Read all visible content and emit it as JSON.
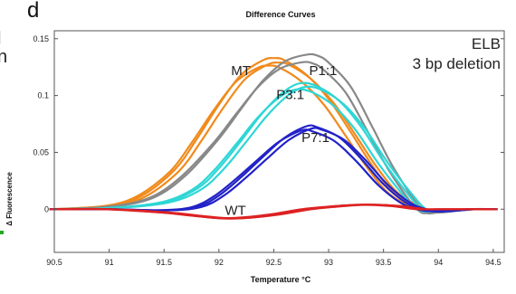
{
  "figure": {
    "panel_letter": "d",
    "left_edge_fragments": [
      "l",
      "n"
    ]
  },
  "chart_data": {
    "type": "line",
    "title": "Difference Curves",
    "xlabel": "Temperature °C",
    "ylabel": "Δ Fluorescence",
    "xlim": [
      90.5,
      94.6
    ],
    "ylim": [
      -0.038,
      0.157
    ],
    "xticks": [
      "90.5",
      "91",
      "91.5",
      "92",
      "92.5",
      "93",
      "93.5",
      "94",
      "94.5"
    ],
    "yticks": [
      "0",
      "0.05",
      "0.1",
      "0.15"
    ],
    "grid": false,
    "annotations": {
      "corner": [
        "ELB",
        "3 bp deletion"
      ],
      "labels": [
        {
          "text": "MT",
          "x": 92.2,
          "y": 0.118
        },
        {
          "text": "P1:1",
          "x": 92.95,
          "y": 0.118
        },
        {
          "text": "P3:1",
          "x": 92.65,
          "y": 0.097
        },
        {
          "text": "P7:1",
          "x": 92.88,
          "y": 0.059
        },
        {
          "text": "WT",
          "x": 92.15,
          "y": -0.005
        }
      ]
    },
    "series": [
      {
        "name": "MT",
        "color": "#f08a1c",
        "replicates": 3,
        "x": [
          90.5,
          91.0,
          91.3,
          91.6,
          91.8,
          92.0,
          92.2,
          92.4,
          92.5,
          92.6,
          92.8,
          93.0,
          93.2,
          93.4,
          93.6,
          93.85,
          94.0,
          94.3,
          94.5
        ],
        "y": [
          0,
          0.003,
          0.012,
          0.035,
          0.062,
          0.092,
          0.118,
          0.131,
          0.133,
          0.131,
          0.118,
          0.097,
          0.068,
          0.038,
          0.014,
          0,
          -0.002,
          0,
          0
        ]
      },
      {
        "name": "P1:1",
        "color": "#888888",
        "replicates": 2,
        "x": [
          90.5,
          91.0,
          91.4,
          91.7,
          92.0,
          92.2,
          92.4,
          92.6,
          92.8,
          92.9,
          93.0,
          93.2,
          93.4,
          93.6,
          93.85,
          94.0,
          94.3,
          94.5
        ],
        "y": [
          0,
          0.002,
          0.01,
          0.03,
          0.062,
          0.088,
          0.113,
          0.13,
          0.136,
          0.135,
          0.129,
          0.108,
          0.072,
          0.035,
          0,
          -0.003,
          0,
          0
        ]
      },
      {
        "name": "P3:1",
        "color": "#2fd6d6",
        "replicates": 3,
        "x": [
          90.5,
          91.0,
          91.5,
          91.8,
          92.0,
          92.2,
          92.4,
          92.6,
          92.75,
          92.9,
          93.1,
          93.3,
          93.5,
          93.7,
          93.85,
          94.0,
          94.3,
          94.5
        ],
        "y": [
          0,
          0.001,
          0.006,
          0.018,
          0.036,
          0.06,
          0.085,
          0.104,
          0.111,
          0.108,
          0.095,
          0.072,
          0.042,
          0.016,
          0,
          -0.002,
          0,
          0
        ]
      },
      {
        "name": "P7:1",
        "color": "#2222c8",
        "replicates": 3,
        "x": [
          90.5,
          91.0,
          91.5,
          91.8,
          92.0,
          92.2,
          92.4,
          92.6,
          92.8,
          92.9,
          93.1,
          93.3,
          93.5,
          93.7,
          93.85,
          94.0,
          94.3,
          94.5
        ],
        "y": [
          0,
          0,
          -0.001,
          0.002,
          0.012,
          0.028,
          0.046,
          0.063,
          0.073,
          0.072,
          0.063,
          0.044,
          0.022,
          0.006,
          0,
          -0.002,
          0,
          0
        ]
      },
      {
        "name": "WT",
        "color": "#dd2222",
        "replicates": 3,
        "x": [
          90.5,
          91.0,
          91.5,
          91.8,
          92.0,
          92.2,
          92.5,
          92.8,
          93.0,
          93.3,
          93.6,
          93.85,
          94.0,
          94.3,
          94.5
        ],
        "y": [
          0,
          0,
          -0.003,
          -0.006,
          -0.008,
          -0.008,
          -0.005,
          0,
          0.002,
          0.004,
          0.003,
          0,
          0,
          0,
          0
        ]
      }
    ]
  }
}
